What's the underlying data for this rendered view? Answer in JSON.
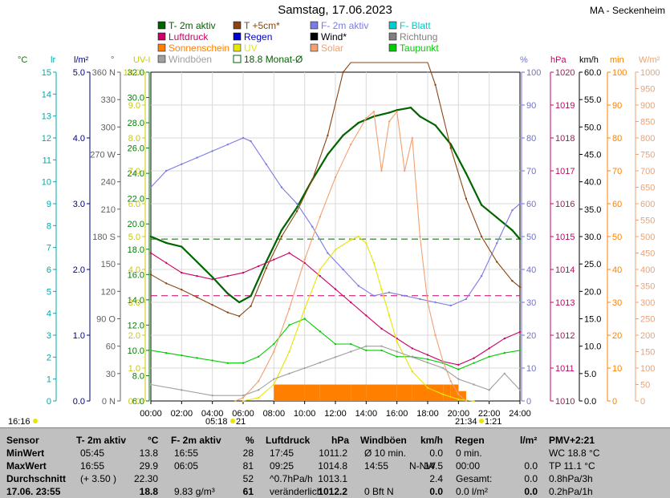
{
  "header": {
    "title": "Samstag, 17.06.2023",
    "location": "MA - Seckenheim"
  },
  "legend": [
    {
      "label": "T- 2m aktiv",
      "color": "#006400"
    },
    {
      "label": "T +5cm*",
      "color": "#8b4513"
    },
    {
      "label": "F- 2m aktiv",
      "color": "#7b7be6"
    },
    {
      "label": "F- Blatt",
      "color": "#00cccc"
    },
    {
      "label": "Luftdruck",
      "color": "#cc0066"
    },
    {
      "label": "Regen",
      "color": "#0000cc"
    },
    {
      "label": "Wind*",
      "color": "#000000"
    },
    {
      "label": "Richtung",
      "color": "#808080"
    },
    {
      "label": "Sonnenschein",
      "color": "#ff8000"
    },
    {
      "label": "UV",
      "color": "#e6e600"
    },
    {
      "label": "Solar",
      "color": "#f4a070"
    },
    {
      "label": "Taupunkt",
      "color": "#00cc00"
    },
    {
      "label": "Windböen",
      "color": "#a0a0a0"
    },
    {
      "label": "18.8 Monat-Ø",
      "color": "#006400"
    }
  ],
  "axes_left": [
    {
      "unit": "°C",
      "color": "#008000",
      "ticks": [
        "32.0",
        "30.0",
        "28.0",
        "26.0",
        "24.0",
        "22.0",
        "20.0",
        "18.0",
        "16.0",
        "14.0",
        "12.0",
        "10.0",
        "8.0",
        "6.0"
      ]
    },
    {
      "unit": "lr",
      "color": "#00aaaa",
      "ticks": [
        "15",
        "14",
        "13",
        "12",
        "11",
        "10",
        "9",
        "8",
        "7",
        "6",
        "5",
        "4",
        "3",
        "2",
        "1",
        "0"
      ]
    },
    {
      "unit": "l/m²",
      "color": "#000080",
      "ticks": [
        "5.0",
        "4.0",
        "3.0",
        "2.0",
        "1.0",
        "0.0"
      ]
    },
    {
      "unit": "°",
      "color": "#606060",
      "ticks": [
        "360 N",
        "330",
        "300",
        "270 W",
        "240",
        "210",
        "180 S",
        "150",
        "120",
        "90 O",
        "60",
        "30",
        "0 N"
      ]
    },
    {
      "unit": "UV-I",
      "color": "#c8c800",
      "ticks": [
        "10.0",
        "9.0",
        "8.0",
        "7.0",
        "6.0",
        "5.0",
        "4.0",
        "3.0",
        "2.0",
        "1.0",
        "0.0"
      ]
    }
  ],
  "axes_right": [
    {
      "unit": "%",
      "color": "#7070d0",
      "ticks": [
        "100",
        "90",
        "80",
        "70",
        "60",
        "50",
        "40",
        "30",
        "20",
        "10",
        "0"
      ]
    },
    {
      "unit": "hPa",
      "color": "#cc0066",
      "ticks": [
        "1020",
        "1019",
        "1018",
        "1017",
        "1016",
        "1015",
        "1014",
        "1013",
        "1012",
        "1011",
        "1010"
      ]
    },
    {
      "unit": "km/h",
      "color": "#000000",
      "ticks": [
        "60.0",
        "55.0",
        "50.0",
        "45.0",
        "40.0",
        "35.0",
        "30.0",
        "25.0",
        "20.0",
        "15.0",
        "10.0",
        "5.0",
        "0.0"
      ]
    },
    {
      "unit": "min",
      "color": "#ff8000",
      "ticks": [
        "100",
        "90",
        "80",
        "70",
        "60",
        "50",
        "40",
        "30",
        "20",
        "10",
        "0"
      ]
    },
    {
      "unit": "W/m²",
      "color": "#f0a070",
      "ticks": [
        "1000",
        "950",
        "900",
        "850",
        "800",
        "750",
        "700",
        "650",
        "600",
        "550",
        "500",
        "450",
        "400",
        "350",
        "300",
        "250",
        "200",
        "150",
        "100",
        "50",
        "0"
      ]
    }
  ],
  "x_ticks": [
    "00:00",
    "02:00",
    "04:00",
    "06:00",
    "08:00",
    "10:00",
    "12:00",
    "14:00",
    "16:00",
    "18:00",
    "20:00",
    "22:00",
    "24:00"
  ],
  "sun": {
    "sunrise_label": "05:18",
    "sunset_label": "21:34",
    "day_left": "16:16",
    "span1": "21",
    "span2": "1:21"
  },
  "chart_data": {
    "type": "line",
    "x_label": "Uhrzeit",
    "x_range": [
      0,
      24
    ],
    "series": [
      {
        "name": "T- 2m aktiv",
        "unit": "°C",
        "x": [
          0,
          1,
          2,
          3,
          4,
          5,
          5.75,
          6.5,
          7.5,
          8.5,
          9.5,
          10.5,
          11.5,
          12.5,
          13.5,
          14.5,
          15.5,
          16,
          16.9,
          17.5,
          18.5,
          19.5,
          20.5,
          21.5,
          22.5,
          23.5,
          24
        ],
        "y": [
          19.0,
          18.5,
          18.2,
          17.0,
          15.8,
          14.5,
          13.8,
          14.3,
          17.0,
          19.5,
          21.3,
          23.5,
          25.5,
          27.0,
          28.0,
          28.5,
          28.8,
          29.0,
          29.2,
          28.5,
          27.8,
          26.3,
          24.0,
          21.5,
          20.5,
          19.5,
          18.8
        ]
      },
      {
        "name": "F- 2m aktiv",
        "unit": "%",
        "x": [
          0,
          1,
          2,
          3,
          4,
          5,
          6,
          6.5,
          7.5,
          8.5,
          9.5,
          10.5,
          11.5,
          12.5,
          13.5,
          14.5,
          15.5,
          16.5,
          17.5,
          18.5,
          19.5,
          20.5,
          21.5,
          22.5,
          23.5,
          24
        ],
        "y": [
          65,
          70,
          72,
          74,
          76,
          78,
          80,
          79,
          72,
          65,
          60,
          53,
          45,
          40,
          35,
          32,
          33,
          32,
          31,
          30,
          29,
          31,
          38,
          48,
          58,
          60
        ]
      },
      {
        "name": "Luftdruck",
        "unit": "hPa",
        "x": [
          0,
          1,
          2,
          3,
          4,
          5,
          6,
          7,
          8,
          9,
          10,
          11,
          12,
          13,
          14,
          15,
          16,
          17,
          18,
          19,
          20,
          21,
          22,
          23,
          24
        ],
        "y": [
          1014.5,
          1014.2,
          1013.9,
          1013.8,
          1013.7,
          1013.8,
          1013.9,
          1014.1,
          1014.3,
          1014.5,
          1014.2,
          1013.8,
          1013.4,
          1013.0,
          1012.6,
          1012.2,
          1011.9,
          1011.6,
          1011.4,
          1011.2,
          1011.1,
          1011.3,
          1011.6,
          1011.9,
          1012.1
        ]
      },
      {
        "name": "Taupunkt",
        "unit": "°C",
        "x": [
          0,
          1,
          2,
          3,
          4,
          5,
          6,
          7,
          8,
          9,
          10,
          11,
          12,
          13,
          14,
          15,
          16,
          17,
          18,
          19,
          20,
          21,
          22,
          23,
          24
        ],
        "y": [
          10.0,
          9.8,
          9.6,
          9.4,
          9.2,
          9.0,
          9.0,
          9.5,
          10.5,
          12.0,
          12.5,
          11.5,
          10.5,
          10.5,
          10.0,
          10.0,
          9.5,
          9.5,
          9.3,
          9.0,
          8.5,
          9.0,
          9.5,
          9.8,
          10.0
        ]
      },
      {
        "name": "UV",
        "unit": "UV-I",
        "x": [
          6,
          7,
          8,
          9,
          10,
          11,
          12,
          13,
          13.5,
          14,
          14.5,
          15,
          15.5,
          16,
          17,
          18,
          19,
          20,
          21
        ],
        "y": [
          0,
          0.1,
          0.5,
          1.5,
          2.8,
          4.0,
          4.6,
          4.9,
          5.0,
          4.8,
          4.2,
          3.4,
          2.6,
          1.8,
          0.9,
          0.4,
          0.2,
          0.05,
          0
        ]
      },
      {
        "name": "Solar",
        "unit": "W/m²",
        "x": [
          5.5,
          6,
          7,
          8,
          9,
          10,
          11,
          12,
          13,
          14,
          14.5,
          15,
          15.5,
          16,
          16.5,
          17,
          17.5,
          18,
          18.5,
          19,
          19.5,
          20,
          20.5
        ],
        "y": [
          0,
          10,
          60,
          150,
          280,
          430,
          560,
          680,
          780,
          860,
          880,
          700,
          850,
          880,
          700,
          800,
          500,
          300,
          200,
          120,
          60,
          20,
          0
        ]
      },
      {
        "name": "Windböen",
        "unit": "km/h",
        "x": [
          0,
          2,
          4,
          6,
          7,
          8,
          9,
          10,
          11,
          12,
          13,
          14,
          15,
          16,
          17,
          18,
          19,
          20,
          21,
          22,
          23,
          24
        ],
        "y": [
          3,
          2,
          1,
          1,
          2,
          4,
          5,
          6,
          7,
          8,
          9,
          10,
          10,
          9,
          8,
          7,
          6,
          4,
          3,
          2,
          5,
          2
        ]
      },
      {
        "name": "T +5cm*",
        "unit": "°C",
        "x": [
          0,
          1,
          2,
          3,
          4,
          5,
          5.75,
          6.5,
          7.5,
          8.5,
          9.5,
          10.5,
          11.5,
          12.5,
          13,
          14,
          15,
          16,
          17,
          18,
          18.5,
          19.5,
          20.5,
          21.5,
          22.5,
          23.5,
          24
        ],
        "y": [
          16.0,
          15.3,
          14.8,
          14.2,
          13.6,
          13.0,
          12.7,
          13.5,
          16.5,
          19.0,
          21.0,
          23.5,
          27.0,
          32.0,
          40,
          42,
          40,
          40,
          38,
          34,
          31,
          26,
          22,
          19,
          17,
          15.5,
          15.0
        ]
      },
      {
        "name": "Sonnenschein",
        "unit": "min",
        "x": [
          8,
          9,
          10,
          11,
          12,
          13,
          14,
          15,
          16,
          17,
          18,
          19,
          19.5,
          20,
          20.5,
          21
        ],
        "y": [
          5,
          5,
          5,
          5,
          5,
          5,
          5,
          5,
          5,
          5,
          5,
          5,
          5,
          3,
          0,
          0
        ]
      }
    ],
    "reference_lines": [
      {
        "name": "18.8 Monat-Ø",
        "unit": "°C",
        "value": 18.8
      },
      {
        "name": "Luftdruck-Mittel",
        "unit": "hPa",
        "value": 1013.2
      }
    ]
  },
  "table": {
    "headers": [
      {
        "label": "Sensor",
        "unit": ""
      },
      {
        "label": "T- 2m aktiv",
        "unit": "°C"
      },
      {
        "label": "F- 2m aktiv",
        "unit": "%"
      },
      {
        "label": "Luftdruck",
        "unit": "hPa"
      },
      {
        "label": "Windböen",
        "unit": "km/h"
      },
      {
        "label": "Regen",
        "unit": "l/m²"
      },
      {
        "label": "PMV+2:21",
        "unit": ""
      }
    ],
    "rows": [
      {
        "label": "MinWert",
        "c1a": "05:45",
        "c1b": "13.8",
        "c2a": "16:55",
        "c2b": "28",
        "c3a": "17:45",
        "c3b": "1011.2",
        "c4a": "Ø 10 min.",
        "c4b": "0.0",
        "c5a": "0 min.",
        "c5b": "",
        "c6": "WC 18.8 °C"
      },
      {
        "label": "MaxWert",
        "c1a": "16:55",
        "c1b": "29.9",
        "c2a": "06:05",
        "c2b": "81",
        "c3a": "09:25",
        "c3b": "1014.8",
        "c4a": "14:55",
        "c4m": "N-NW",
        "c4b": "14.5",
        "c5a": "00:00",
        "c5b": "0.0",
        "c6": "TP 11.1 °C"
      },
      {
        "label": "Durchschnitt",
        "c1a": "(+ 3.50 )",
        "c1b": "22.30",
        "c2a": "",
        "c2b": "52",
        "c3a": "^0.7hPa/h",
        "c3b": "1013.1",
        "c4a": "",
        "c4b": "2.4",
        "c5a": "Gesamt:",
        "c5b": "0.0",
        "c6": "0.8hPa/3h"
      },
      {
        "label": "17.06. 23:55",
        "c1a": "",
        "c1b": "18.8",
        "c2a": "9.83 g/m³",
        "c2b": "61",
        "c3a": "veränderlich",
        "c3b": "1012.2",
        "c4a": "0 Bft N",
        "c4b": "0.0",
        "c5a": "0.0 l/m²",
        "c5b": "0.0",
        "c6": "0.2hPa/1h"
      }
    ]
  }
}
